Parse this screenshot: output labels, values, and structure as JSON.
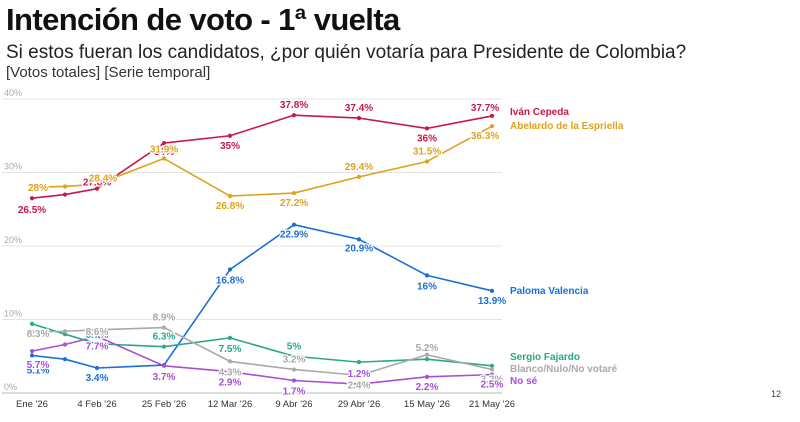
{
  "header": {
    "title": "Intención de voto - 1ª vuelta",
    "subtitle": "Si estos fueran los candidatos, ¿por quién votaría para Presidente de Colombia?",
    "tags": "[Votos totales] [Serie temporal]"
  },
  "page_number": "12",
  "chart_data": {
    "type": "line",
    "title": "Intención de voto - 1ª vuelta",
    "subtitle": "Si estos fueran los candidatos, ¿por quién votaría para Presidente de Colombia?",
    "xlabel": "",
    "ylabel": "",
    "ylim": [
      0,
      40
    ],
    "yticks": [
      0,
      10,
      20,
      30,
      40
    ],
    "ytick_labels": [
      "0%",
      "10%",
      "20%",
      "30%",
      "40%"
    ],
    "grid": true,
    "legend": "right, at line ends",
    "x": [
      "Ene '26",
      "",
      "4 Feb '26",
      "25 Feb '26",
      "12 Mar '26",
      "9 Abr '26",
      "29 Abr '26",
      "15 May '26",
      "21 May '26"
    ],
    "x_dates": [
      "2026-01",
      "2026-01",
      "2026-02-04",
      "2026-02-25",
      "2026-03-12",
      "2026-04-09",
      "2026-04-29",
      "2026-05-15",
      "2026-05-21"
    ],
    "series": [
      {
        "name": "Iván Cepeda",
        "color": "#c8184a",
        "values": [
          26.5,
          27,
          27.8,
          34,
          35,
          37.8,
          37.4,
          36,
          37.7
        ],
        "labels": [
          "26.5%",
          "",
          "27.8%",
          "34%",
          "35%",
          "37.8%",
          "37.4%",
          "36%",
          "37.7%"
        ]
      },
      {
        "name": "Abelardo de la Espriella",
        "color": "#dea21c",
        "values": [
          28,
          28.1,
          28.4,
          31.9,
          26.8,
          27.2,
          29.4,
          31.5,
          36.3
        ],
        "labels": [
          "28%",
          "",
          "28.4%",
          "31.9%",
          "26.8%",
          "27.2%",
          "29.4%",
          "31.5%",
          "36.3%"
        ]
      },
      {
        "name": "Paloma Valencia",
        "color": "#1a6fd6",
        "values": [
          5.1,
          4.6,
          3.4,
          3.8,
          16.8,
          22.9,
          20.9,
          16,
          13.9
        ],
        "labels": [
          "5.1%",
          "",
          "3.4%",
          "",
          "16.8%",
          "22.9%",
          "20.9%",
          "16%",
          "13.9%"
        ]
      },
      {
        "name": "Sergio Fajardo",
        "color": "#2aa78a",
        "values": [
          9.4,
          8,
          6.7,
          6.3,
          7.5,
          5,
          4.2,
          4.6,
          3.7
        ],
        "labels": [
          "9.4%",
          "",
          "6.7%",
          "6.3%",
          "7.5%",
          "5%",
          "",
          "",
          ""
        ]
      },
      {
        "name": "Blanco/Nulo/No votaré",
        "color": "#a9a9a9",
        "values": [
          8.3,
          8.4,
          8.6,
          8.9,
          4.3,
          3.2,
          2.4,
          5.2,
          3.2
        ],
        "labels": [
          "8.3%",
          "",
          "8.6%",
          "8.9%",
          "4.3%",
          "3.2%",
          "2.4%",
          "5.2%",
          "3.2%"
        ]
      },
      {
        "name": "No sé",
        "color": "#a84fd8",
        "values": [
          5.7,
          6.6,
          7.7,
          3.7,
          2.9,
          1.7,
          1.2,
          2.2,
          2.5
        ],
        "labels": [
          "5.7%",
          "",
          "7.7%",
          "3.7%",
          "2.9%",
          "1.7%",
          "1.2%",
          "2.2%",
          "2.5%"
        ]
      }
    ]
  }
}
